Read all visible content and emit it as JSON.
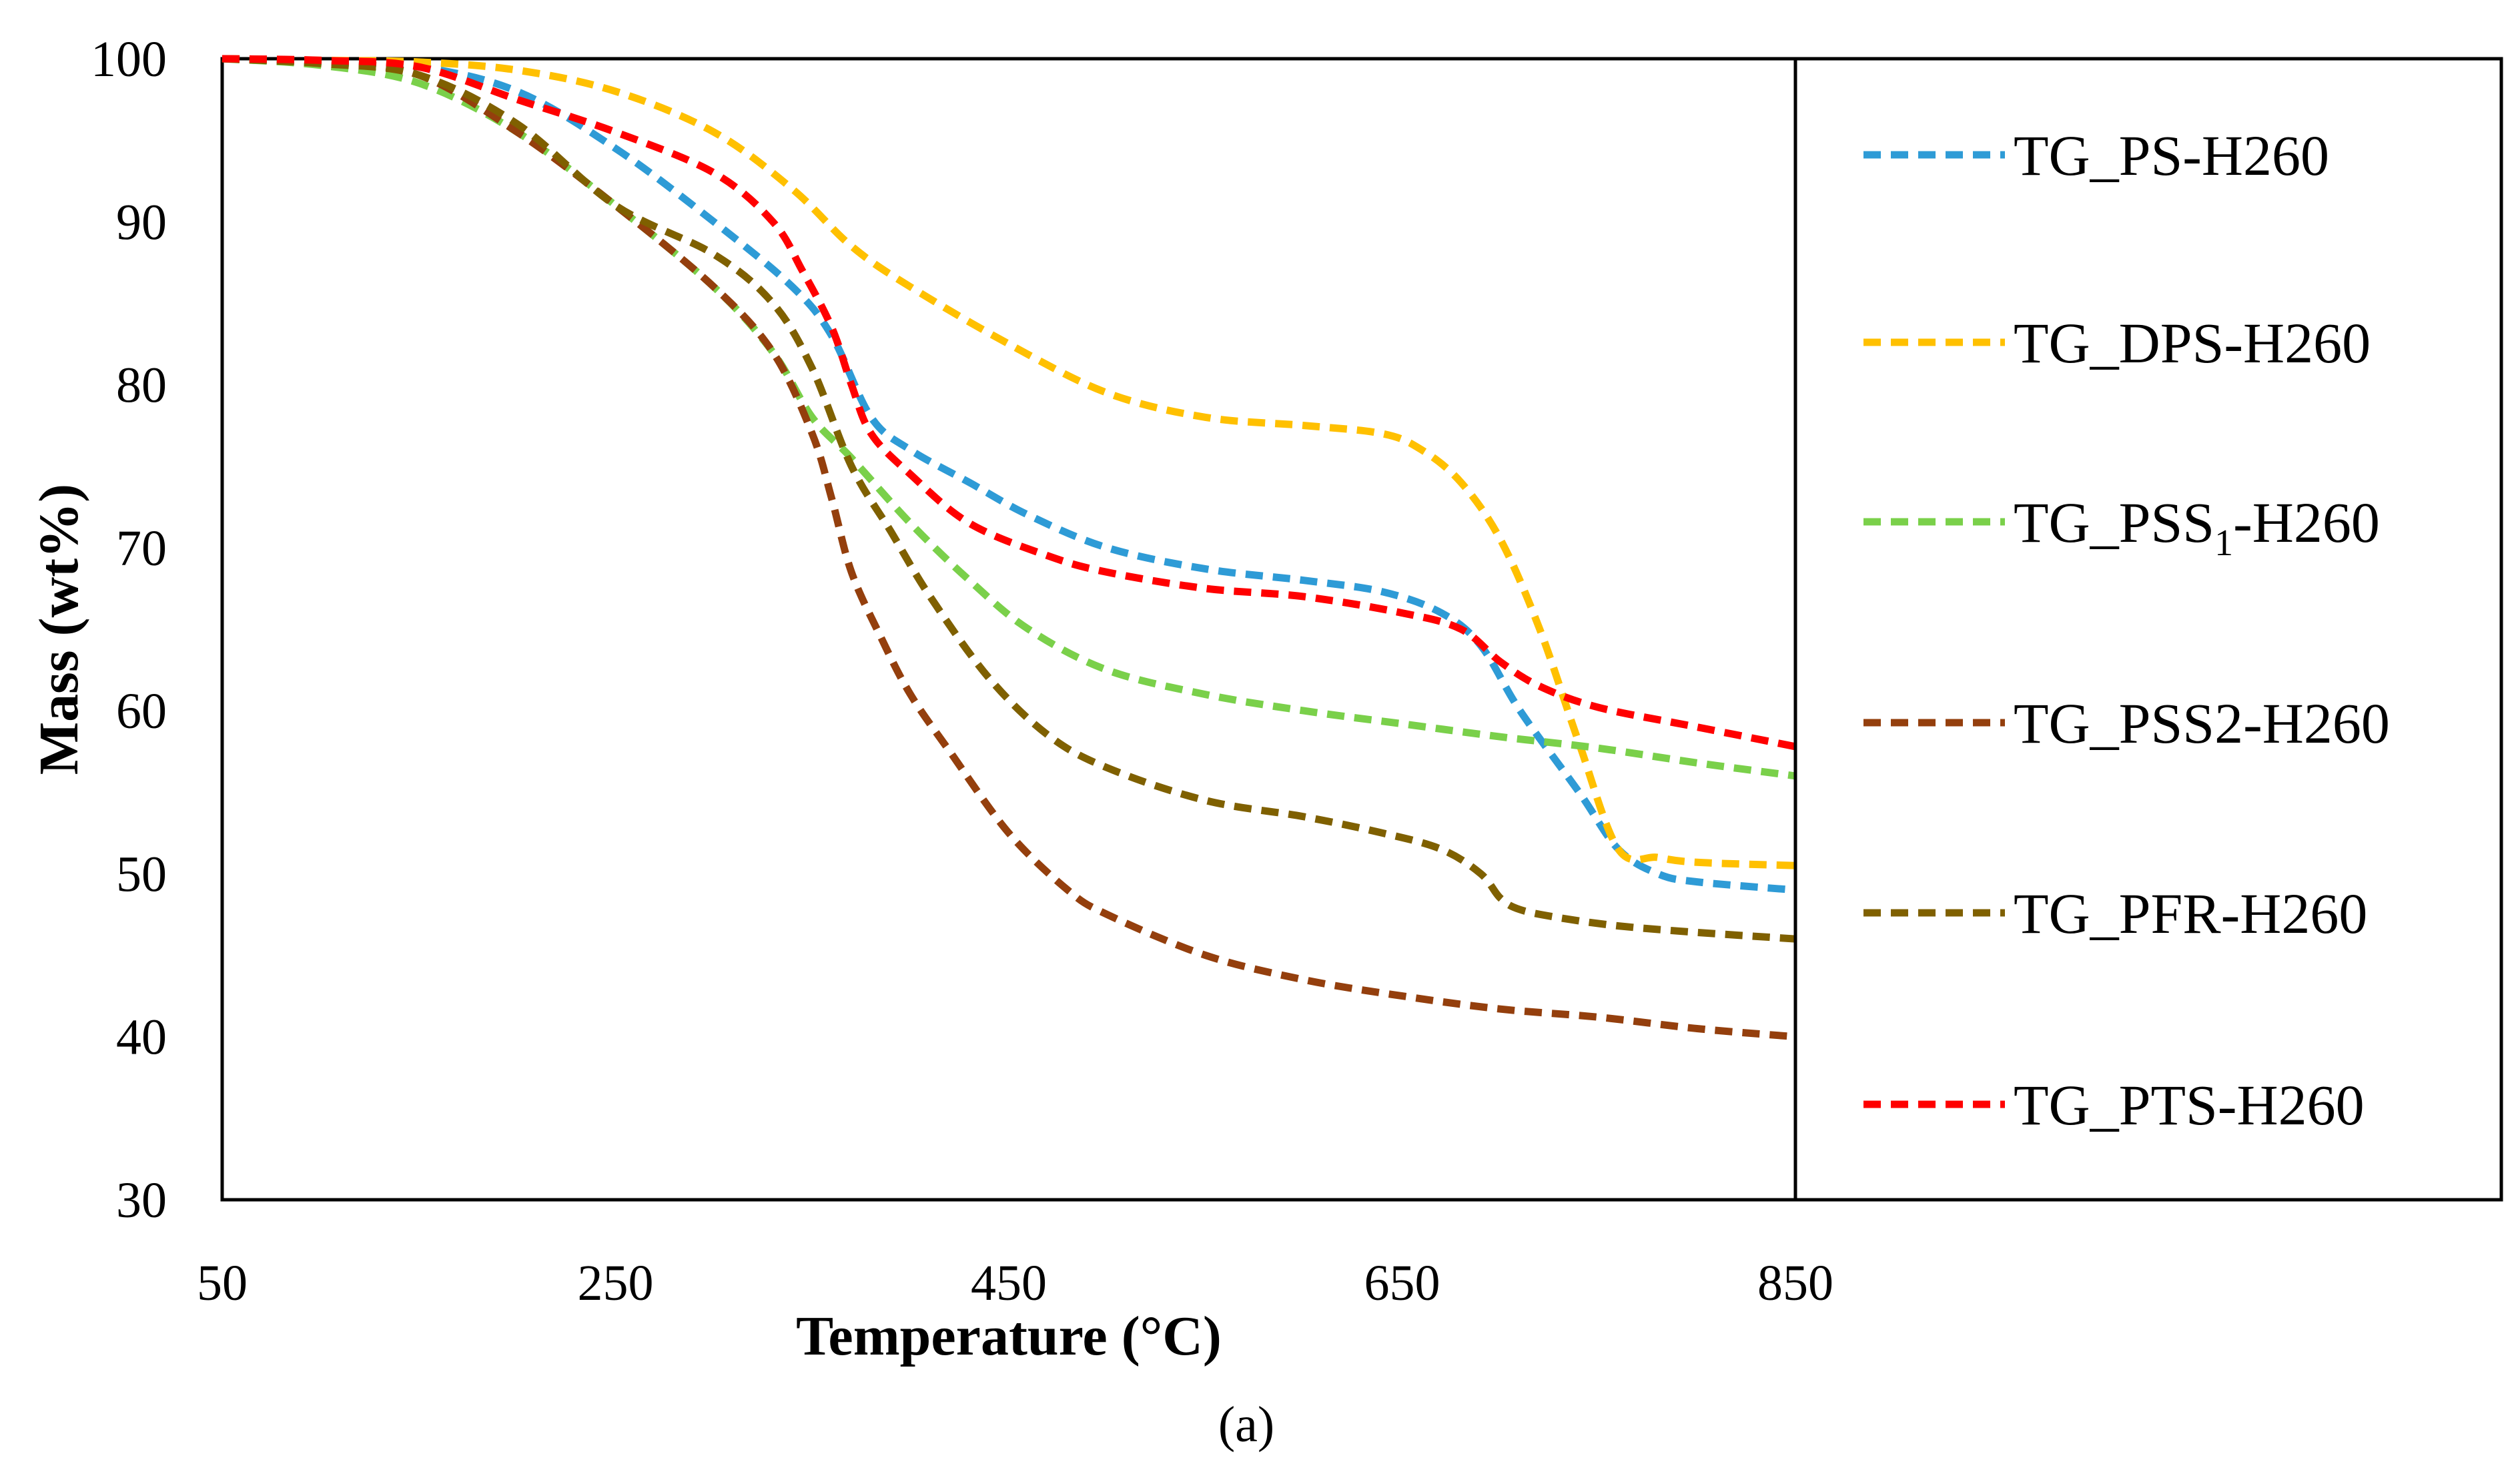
{
  "chart_data": {
    "type": "line",
    "title": "",
    "xlabel": "Temperature (°C)",
    "ylabel": "Mass (wt%)",
    "caption": "(a)",
    "xlim": [
      50,
      850
    ],
    "ylim": [
      30,
      100
    ],
    "xticks": [
      50,
      250,
      450,
      650,
      850
    ],
    "yticks": [
      30,
      40,
      50,
      60,
      70,
      80,
      90,
      100
    ],
    "legend_position": "right",
    "grid": false,
    "series": [
      {
        "name": "TG_PS-H260",
        "legend_main": "TG_PS-H260",
        "color": "#2E9BD6",
        "style": "dashed",
        "x": [
          50,
          100,
          150,
          200,
          250,
          300,
          340,
          360,
          380,
          400,
          430,
          460,
          500,
          550,
          600,
          640,
          670,
          690,
          710,
          740,
          760,
          780,
          800,
          850
        ],
        "y": [
          100,
          99.8,
          99.5,
          98,
          94.5,
          90,
          86,
          83,
          78,
          76,
          74,
          72,
          70,
          68.7,
          68,
          67.3,
          66,
          64,
          60,
          55,
          51.5,
          50,
          49.5,
          49
        ]
      },
      {
        "name": "TG_DPS-H260",
        "legend_main": "TG_DPS-H260",
        "color": "#FFC000",
        "style": "dashed",
        "x": [
          50,
          100,
          150,
          200,
          250,
          300,
          340,
          370,
          400,
          450,
          500,
          550,
          600,
          640,
          660,
          680,
          700,
          720,
          740,
          760,
          780,
          800,
          850
        ],
        "y": [
          100,
          99.9,
          99.8,
          99.3,
          98,
          95.5,
          92,
          88.5,
          86,
          82.5,
          79.5,
          78,
          77.5,
          77,
          76,
          74,
          70.5,
          65,
          58,
          51.5,
          51,
          50.7,
          50.5
        ]
      },
      {
        "name": "TG_PSS1-H260",
        "legend_main": "TG_PSS",
        "legend_sub": "1",
        "legend_tail": "-H260",
        "color": "#7AD04A",
        "style": "dashed",
        "x": [
          50,
          100,
          150,
          200,
          250,
          300,
          330,
          350,
          370,
          400,
          430,
          460,
          500,
          550,
          600,
          650,
          700,
          750,
          800,
          850
        ],
        "y": [
          100,
          99.6,
          98.5,
          95.5,
          91,
          86,
          82,
          78,
          75.5,
          71.5,
          68,
          65,
          62.5,
          61,
          60,
          59.2,
          58.4,
          57.7,
          56.8,
          56
        ]
      },
      {
        "name": "TG_PSS2-H260",
        "legend_main": "TG_PSS2-H260",
        "color": "#943F0D",
        "style": "dashed",
        "x": [
          50,
          100,
          150,
          200,
          250,
          300,
          330,
          350,
          360,
          370,
          385,
          400,
          420,
          450,
          480,
          500,
          550,
          600,
          650,
          700,
          750,
          800,
          850
        ],
        "y": [
          100,
          99.8,
          99,
          95.5,
          91,
          86,
          82,
          77,
          73,
          68.5,
          64.5,
          61,
          57.5,
          52.5,
          49,
          47.5,
          45,
          43.5,
          42.5,
          41.7,
          41.2,
          40.5,
          40
        ]
      },
      {
        "name": "TG_PFR-H260",
        "legend_main": "TG_PFR-H260",
        "color": "#7F6000",
        "style": "dashed",
        "x": [
          50,
          100,
          150,
          200,
          250,
          300,
          330,
          350,
          370,
          390,
          410,
          440,
          470,
          500,
          550,
          600,
          640,
          670,
          690,
          700,
          710,
          730,
          760,
          800,
          850
        ],
        "y": [
          100,
          99.7,
          99,
          96,
          91,
          88,
          85,
          81,
          75,
          71,
          67,
          62,
          58.5,
          56.5,
          54.5,
          53.5,
          52.5,
          51.5,
          50,
          48.5,
          47.8,
          47.3,
          46.8,
          46.4,
          46
        ]
      },
      {
        "name": "TG_PTS-H260",
        "legend_main": "TG_PTS-H260",
        "color": "#FF0000",
        "style": "dashed",
        "x": [
          50,
          100,
          150,
          200,
          250,
          300,
          330,
          345,
          360,
          370,
          380,
          400,
          430,
          470,
          500,
          550,
          600,
          650,
          680,
          700,
          720,
          750,
          800,
          850
        ],
        "y": [
          100,
          99.9,
          99.5,
          97.5,
          95.5,
          93,
          90,
          87,
          83.5,
          80,
          77,
          74.5,
          71.5,
          69.5,
          68.5,
          67.5,
          67,
          66,
          65,
          63,
          61.5,
          60.2,
          59,
          57.8
        ]
      }
    ]
  }
}
